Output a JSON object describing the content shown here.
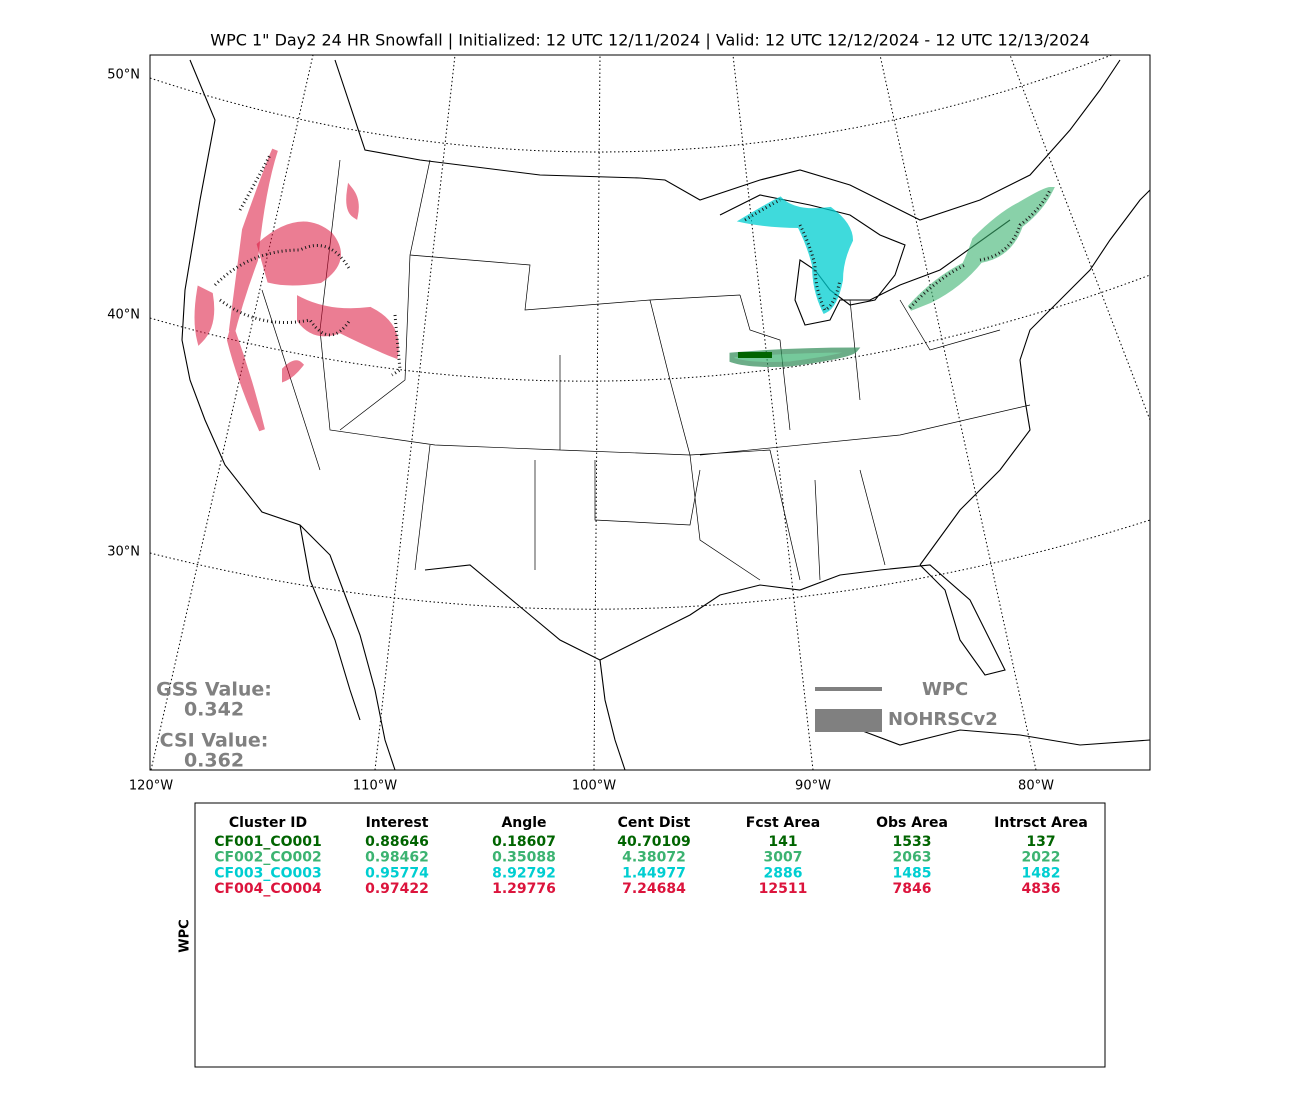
{
  "title": "WPC 1\" Day2 24 HR Snowfall | Initialized: 12 UTC 12/11/2024 | Valid: 12 UTC 12/12/2024 - 12 UTC 12/13/2024",
  "map": {
    "lat_labels": [
      "50°N",
      "40°N",
      "30°N"
    ],
    "lon_labels": [
      "120°W",
      "110°W",
      "100°W",
      "90°W",
      "80°W"
    ],
    "legend": [
      "WPC",
      "NOHRSCv2"
    ]
  },
  "scores": {
    "gss_label": "GSS Value:",
    "gss": "0.342",
    "csi_label": "CSI Value:",
    "csi": "0.362"
  },
  "table": {
    "side_label": "WPC",
    "columns": [
      "Cluster ID",
      "Interest",
      "Angle",
      "Cent Dist",
      "Fcst Area",
      "Obs Area",
      "Intrsct Area"
    ],
    "rows": [
      {
        "color": "#006400",
        "cells": [
          "CF001_CO001",
          "0.88646",
          "0.18607",
          "40.70109",
          "141",
          "1533",
          "137"
        ]
      },
      {
        "color": "#3cb371",
        "cells": [
          "CF002_CO002",
          "0.98462",
          "0.35088",
          "4.38072",
          "3007",
          "2063",
          "2022"
        ]
      },
      {
        "color": "#00ced1",
        "cells": [
          "CF003_CO003",
          "0.95774",
          "8.92792",
          "1.44977",
          "2886",
          "1485",
          "1482"
        ]
      },
      {
        "color": "#dc143c",
        "cells": [
          "CF004_CO004",
          "0.97422",
          "1.29776",
          "7.24684",
          "12511",
          "7846",
          "4836"
        ]
      }
    ]
  }
}
